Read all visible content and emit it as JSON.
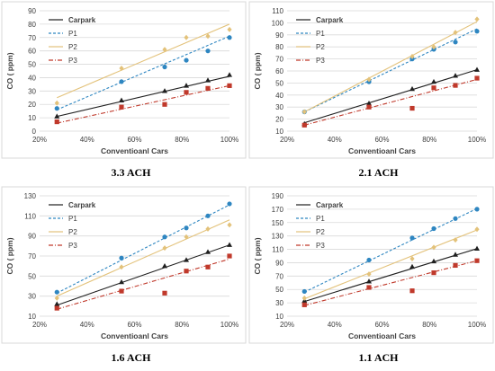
{
  "chart_data": [
    {
      "type": "scatter",
      "title": "",
      "caption": "3.3 ACH",
      "xlabel": "Conventioanl Cars",
      "ylabel": "CO  ( ppm)",
      "xlim": [
        0.2,
        1.0
      ],
      "xticks": [
        0.2,
        0.4,
        0.6,
        0.8,
        1.0
      ],
      "xtick_labels": [
        "20%",
        "40%",
        "60%",
        "80%",
        "100%"
      ],
      "ylim": [
        0,
        90
      ],
      "yticks": [
        0,
        10,
        20,
        30,
        40,
        50,
        60,
        70,
        80,
        90
      ],
      "ytick_labels": [
        "0",
        "10",
        "20",
        "30",
        "40",
        "50",
        "60",
        "70",
        "80",
        "90"
      ],
      "grid": true,
      "legend_position": "top-left",
      "series": [
        {
          "name": "Carpark",
          "x": [
            0.273,
            0.545,
            0.727,
            0.818,
            0.909,
            1.0
          ],
          "y": [
            11,
            23,
            30,
            34,
            38,
            42
          ],
          "color": "#1f1f1f",
          "marker": "triangle",
          "line": "solid",
          "fit": [
            11,
            41
          ]
        },
        {
          "name": "P1",
          "x": [
            0.273,
            0.545,
            0.727,
            0.818,
            0.909,
            1.0
          ],
          "y": [
            17,
            37,
            48,
            53,
            60,
            70
          ],
          "color": "#2e86c1",
          "marker": "circle",
          "line": "dashed",
          "fit": [
            16,
            71
          ]
        },
        {
          "name": "P2",
          "x": [
            0.273,
            0.545,
            0.727,
            0.818,
            0.909,
            1.0
          ],
          "y": [
            21,
            47,
            61,
            70,
            71,
            76
          ],
          "color": "#e3c27a",
          "marker": "diamond",
          "line": "solid",
          "fit": [
            25,
            80
          ]
        },
        {
          "name": "P3",
          "x": [
            0.273,
            0.545,
            0.727,
            0.818,
            0.909,
            1.0
          ],
          "y": [
            7,
            18,
            20,
            29,
            32,
            34
          ],
          "color": "#c0392b",
          "marker": "square",
          "line": "dashdot",
          "fit": [
            6,
            34
          ]
        }
      ]
    },
    {
      "type": "scatter",
      "title": "",
      "caption": "2.1 ACH",
      "xlabel": "Conventioanl Cars",
      "ylabel": "CO  ( ppm)",
      "xlim": [
        0.2,
        1.0
      ],
      "xticks": [
        0.2,
        0.4,
        0.6,
        0.8,
        1.0
      ],
      "xtick_labels": [
        "20%",
        "40%",
        "60%",
        "80%",
        "100%"
      ],
      "ylim": [
        10,
        110
      ],
      "yticks": [
        10,
        20,
        30,
        40,
        50,
        60,
        70,
        80,
        90,
        100,
        110
      ],
      "ytick_labels": [
        "10",
        "20",
        "30",
        "40",
        "50",
        "60",
        "70",
        "80",
        "90",
        "100",
        "110"
      ],
      "grid": true,
      "legend_position": "top-left",
      "series": [
        {
          "name": "Carpark",
          "x": [
            0.273,
            0.545,
            0.727,
            0.818,
            0.909,
            1.0
          ],
          "y": [
            16,
            33,
            45,
            51,
            56,
            61
          ],
          "color": "#1f1f1f",
          "marker": "triangle",
          "line": "solid",
          "fit": [
            17,
            61
          ]
        },
        {
          "name": "P1",
          "x": [
            0.273,
            0.545,
            0.727,
            0.818,
            0.909,
            1.0
          ],
          "y": [
            26,
            51,
            70,
            78,
            84,
            93
          ],
          "color": "#2e86c1",
          "marker": "circle",
          "line": "dashed",
          "fit": [
            26,
            95
          ]
        },
        {
          "name": "P2",
          "x": [
            0.273,
            0.545,
            0.727,
            0.818,
            0.909,
            1.0
          ],
          "y": [
            26,
            53,
            72,
            80,
            92,
            103
          ],
          "color": "#e3c27a",
          "marker": "diamond",
          "line": "solid",
          "fit": [
            26,
            101
          ]
        },
        {
          "name": "P3",
          "x": [
            0.273,
            0.545,
            0.727,
            0.818,
            0.909,
            1.0
          ],
          "y": [
            15,
            30,
            29,
            46,
            48,
            54
          ],
          "color": "#c0392b",
          "marker": "square",
          "line": "dashdot",
          "fit": [
            15,
            53
          ]
        }
      ]
    },
    {
      "type": "scatter",
      "title": "",
      "caption": "1.6 ACH",
      "xlabel": "Conventioanl Cars",
      "ylabel": "CO  ( ppm)",
      "xlim": [
        0.2,
        1.0
      ],
      "xticks": [
        0.2,
        0.4,
        0.6,
        0.8,
        1.0
      ],
      "xtick_labels": [
        "20%",
        "40%",
        "60%",
        "80%",
        "100%"
      ],
      "ylim": [
        10,
        130
      ],
      "yticks": [
        10,
        30,
        50,
        70,
        90,
        110,
        130
      ],
      "ytick_labels": [
        "10",
        "30",
        "50",
        "70",
        "90",
        "110",
        "130"
      ],
      "grid": true,
      "legend_position": "top-left",
      "series": [
        {
          "name": "Carpark",
          "x": [
            0.273,
            0.545,
            0.727,
            0.818,
            0.909,
            1.0
          ],
          "y": [
            22,
            44,
            60,
            66,
            74,
            81
          ],
          "color": "#1f1f1f",
          "marker": "triangle",
          "line": "solid",
          "fit": [
            21,
            81
          ]
        },
        {
          "name": "P1",
          "x": [
            0.273,
            0.545,
            0.727,
            0.818,
            0.909,
            1.0
          ],
          "y": [
            34,
            68,
            89,
            98,
            110,
            122
          ],
          "color": "#2e86c1",
          "marker": "circle",
          "line": "dashed",
          "fit": [
            33,
            121
          ]
        },
        {
          "name": "P2",
          "x": [
            0.273,
            0.545,
            0.727,
            0.818,
            0.909,
            1.0
          ],
          "y": [
            28,
            59,
            78,
            89,
            97,
            101
          ],
          "color": "#e3c27a",
          "marker": "diamond",
          "line": "solid",
          "fit": [
            30,
            106
          ]
        },
        {
          "name": "P3",
          "x": [
            0.273,
            0.545,
            0.727,
            0.818,
            0.909,
            1.0
          ],
          "y": [
            18,
            35,
            33,
            55,
            59,
            70
          ],
          "color": "#c0392b",
          "marker": "square",
          "line": "dashdot",
          "fit": [
            17,
            67
          ]
        }
      ]
    },
    {
      "type": "scatter",
      "title": "",
      "caption": "1.1 ACH",
      "xlabel": "Conventioanl Cars",
      "ylabel": "CO  ( ppm)",
      "xlim": [
        0.2,
        1.0
      ],
      "xticks": [
        0.2,
        0.4,
        0.6,
        0.8,
        1.0
      ],
      "xtick_labels": [
        "20%",
        "40%",
        "60%",
        "80%",
        "100%"
      ],
      "ylim": [
        10,
        190
      ],
      "yticks": [
        10,
        30,
        50,
        70,
        90,
        110,
        130,
        150,
        170,
        190
      ],
      "ytick_labels": [
        "10",
        "30",
        "50",
        "70",
        "90",
        "110",
        "130",
        "150",
        "170",
        "190"
      ],
      "grid": true,
      "legend_position": "top-left",
      "series": [
        {
          "name": "Carpark",
          "x": [
            0.273,
            0.545,
            0.727,
            0.818,
            0.909,
            1.0
          ],
          "y": [
            33,
            62,
            84,
            92,
            102,
            111
          ],
          "color": "#1f1f1f",
          "marker": "triangle",
          "line": "solid",
          "fit": [
            32,
            111
          ]
        },
        {
          "name": "P1",
          "x": [
            0.273,
            0.545,
            0.727,
            0.818,
            0.909,
            1.0
          ],
          "y": [
            47,
            94,
            127,
            141,
            156,
            170
          ],
          "color": "#2e86c1",
          "marker": "circle",
          "line": "dashed",
          "fit": [
            46,
            171
          ]
        },
        {
          "name": "P2",
          "x": [
            0.273,
            0.545,
            0.727,
            0.818,
            0.909,
            1.0
          ],
          "y": [
            37,
            73,
            96,
            113,
            124,
            140
          ],
          "color": "#e3c27a",
          "marker": "diamond",
          "line": "solid",
          "fit": [
            36,
            139
          ]
        },
        {
          "name": "P3",
          "x": [
            0.273,
            0.545,
            0.727,
            0.818,
            0.909,
            1.0
          ],
          "y": [
            27,
            53,
            48,
            75,
            86,
            93
          ],
          "color": "#c0392b",
          "marker": "square",
          "line": "dashdot",
          "fit": [
            26,
            93
          ]
        }
      ]
    }
  ]
}
